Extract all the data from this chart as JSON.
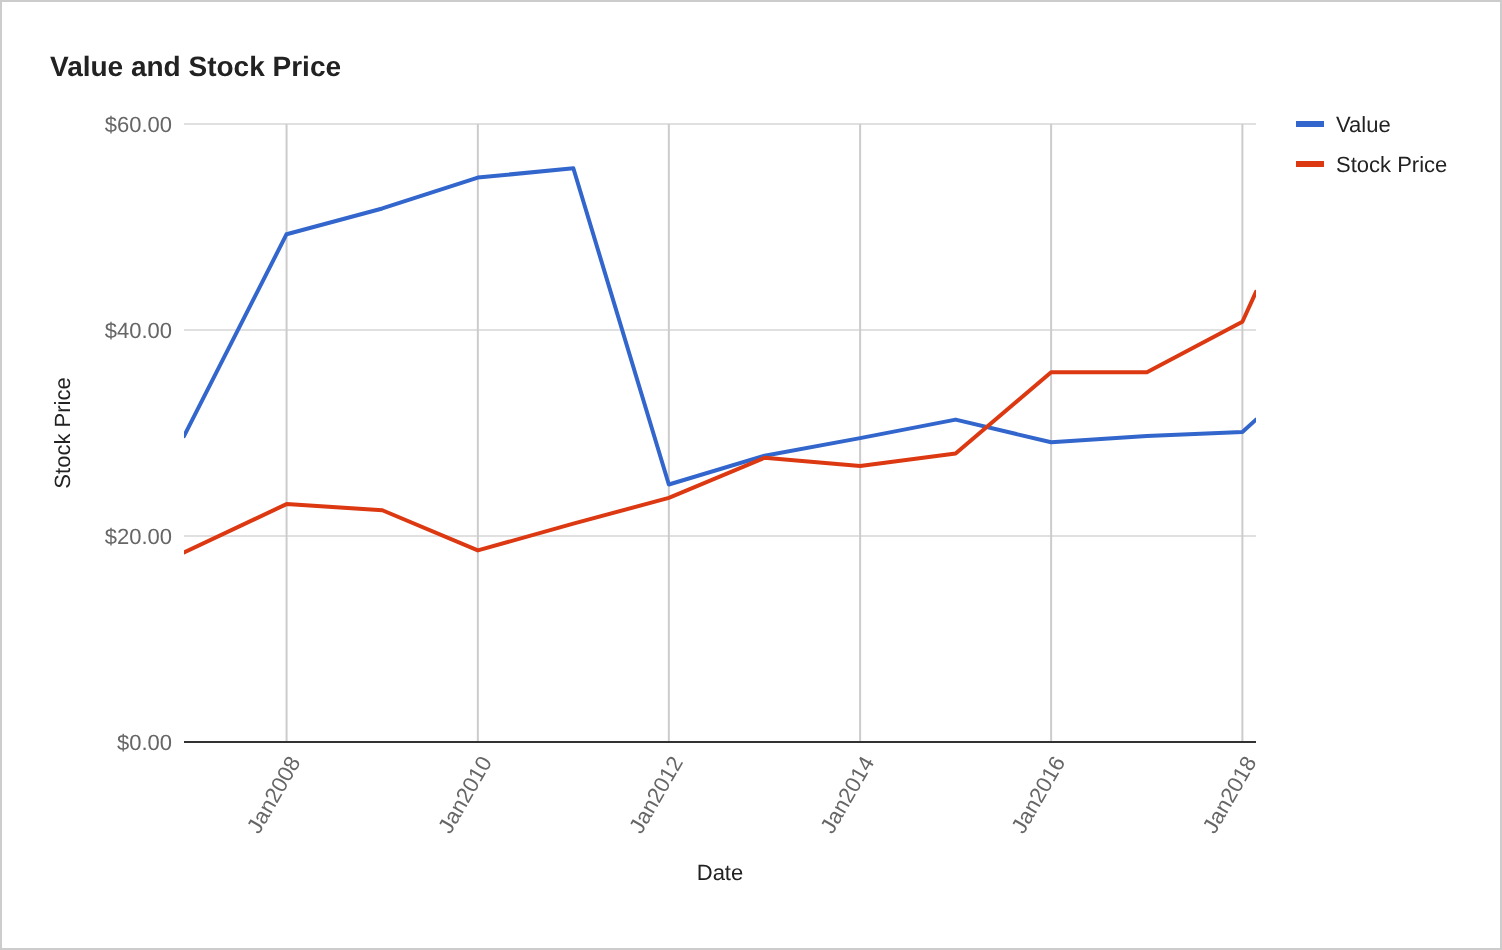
{
  "chart_data": {
    "type": "line",
    "title": "Value and Stock Price",
    "xlabel": "Date",
    "ylabel": "Stock Price",
    "x": [
      "2006-12-05",
      "2008-01",
      "2009-01",
      "2010-01",
      "2011-01",
      "2012-01",
      "2013-01",
      "2014-01",
      "2015-01",
      "2016-01",
      "2017-01",
      "2018-01",
      "2018-02-22"
    ],
    "series": [
      {
        "name": "Value",
        "color": "#3366cc",
        "values": [
          29.7,
          49.3,
          51.8,
          54.8,
          55.7,
          25.0,
          27.8,
          29.5,
          31.3,
          29.1,
          29.7,
          30.1,
          31.3
        ]
      },
      {
        "name": "Stock Price",
        "color": "#dc3912",
        "values": [
          18.4,
          23.1,
          22.5,
          18.6,
          21.2,
          23.7,
          27.6,
          26.8,
          28.0,
          35.9,
          35.9,
          40.8,
          43.7
        ]
      }
    ],
    "xlim": [
      "2006-12-05",
      "2018-02-22"
    ],
    "xticks": [
      {
        "value": "2008-01",
        "label": "Jan2008"
      },
      {
        "value": "2010-01",
        "label": "Jan2010"
      },
      {
        "value": "2012-01",
        "label": "Jan2012"
      },
      {
        "value": "2014-01",
        "label": "Jan2014"
      },
      {
        "value": "2016-01",
        "label": "Jan2016"
      },
      {
        "value": "2018-01",
        "label": "Jan2018"
      }
    ],
    "ylim": [
      0,
      60
    ],
    "yticks": [
      {
        "value": 0,
        "label": "$0.00"
      },
      {
        "value": 20,
        "label": "$20.00"
      },
      {
        "value": 40,
        "label": "$40.00"
      },
      {
        "value": 60,
        "label": "$60.00"
      }
    ],
    "grid": true,
    "legend": "top right",
    "marker": "none",
    "line_style": "solid"
  }
}
